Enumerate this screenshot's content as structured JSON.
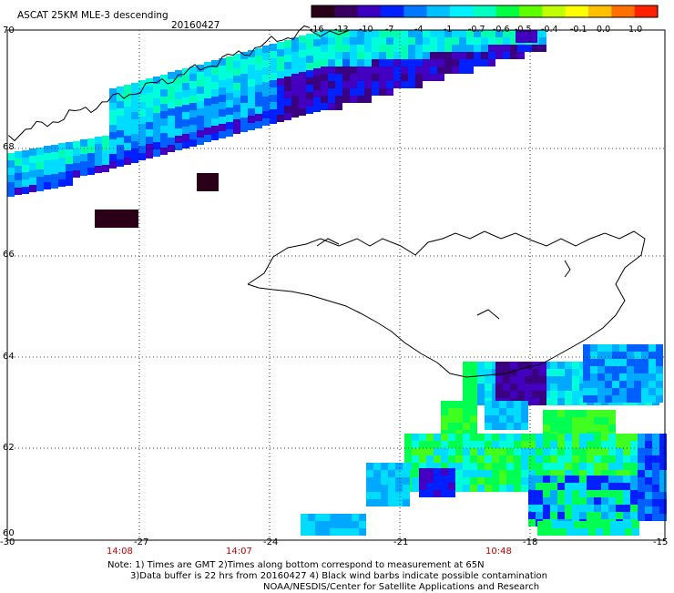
{
  "header": {
    "title": "ASCAT 25KM MLE-3 descending",
    "date": "20160427"
  },
  "colorbar": {
    "labels": [
      "-16",
      "-13",
      "-10",
      "-7",
      "-4",
      "-1",
      "-0.7",
      "-0.6",
      "-0.5",
      "-0.4",
      "-0.1",
      "0.0",
      "1.0"
    ],
    "colors": [
      "#2a0018",
      "#3a0060",
      "#3c00c0",
      "#0020ff",
      "#0078ff",
      "#00c0ff",
      "#00f0ff",
      "#00ffc0",
      "#00ff40",
      "#60ff00",
      "#c0ff00",
      "#ffff00",
      "#ffc000",
      "#ff7000",
      "#ff2000"
    ]
  },
  "axes": {
    "lat_labels": [
      "70",
      "68",
      "66",
      "64",
      "62",
      "60"
    ],
    "lon_labels": [
      "-30",
      "-27",
      "-24",
      "-21",
      "-18",
      "-15"
    ]
  },
  "time_labels": [
    "14:08",
    "14:07",
    "10:48"
  ],
  "notes": {
    "line1": "Note: 1) Times are GMT 2)Times along bottom correspond to measurement at 65N",
    "line2": "3)Data buffer is 22 hrs from 20160427 4) Black wind barbs indicate possible contamination",
    "line3": "NOAA/NESDIS/Center for Satellite Applications and Research"
  }
}
